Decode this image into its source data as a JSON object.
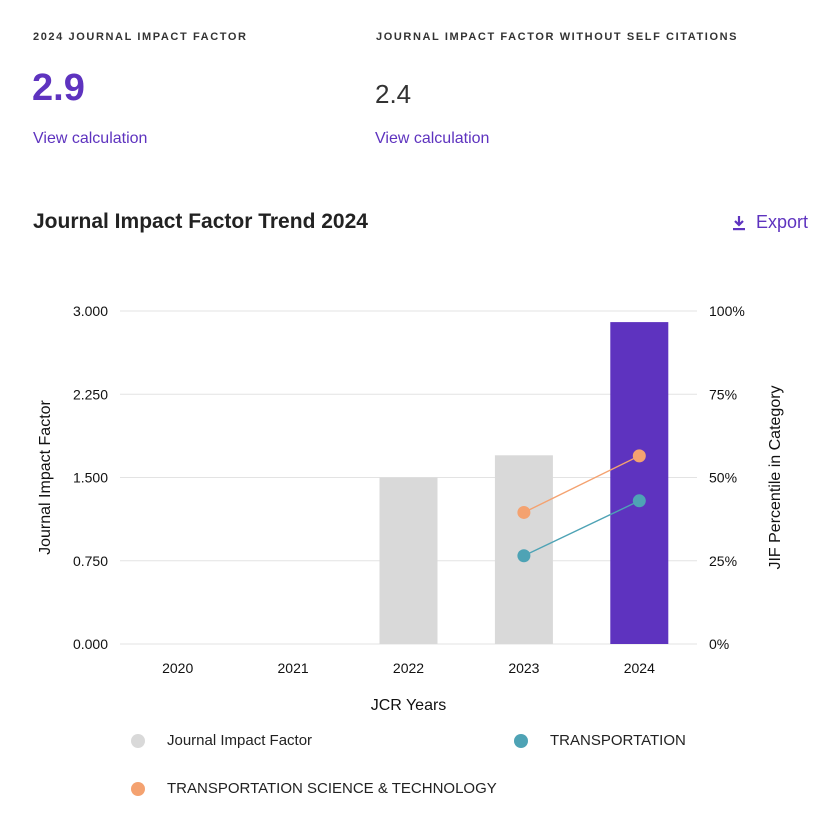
{
  "metrics": {
    "jif": {
      "label": "2024 JOURNAL IMPACT FACTOR",
      "value": "2.9",
      "link": "View calculation"
    },
    "jif_no_self": {
      "label": "JOURNAL IMPACT FACTOR WITHOUT SELF CITATIONS",
      "value": "2.4",
      "link": "View calculation"
    }
  },
  "section": {
    "title": "Journal Impact Factor Trend 2024",
    "export_label": "Export",
    "export_icon": "download-icon"
  },
  "colors": {
    "accent": "#5e33bf",
    "bar_gray": "#d9d9d9",
    "transportation": "#4ea3b5",
    "tst": "#f4a270"
  },
  "chart_data": {
    "type": "bar",
    "title": "",
    "xlabel": "JCR Years",
    "ylabel": "Journal Impact Factor",
    "y2label": "JIF Percentile in Category",
    "categories": [
      "2020",
      "2021",
      "2022",
      "2023",
      "2024"
    ],
    "ylim": [
      0,
      3
    ],
    "y_ticks": [
      "0.000",
      "0.750",
      "1.500",
      "2.250",
      "3.000"
    ],
    "y2lim": [
      0,
      100
    ],
    "y2_ticks": [
      "0%",
      "25%",
      "50%",
      "75%",
      "100%"
    ],
    "grid": true,
    "bars": {
      "name": "Journal Impact Factor",
      "values": [
        null,
        null,
        1.5,
        1.7,
        2.9
      ],
      "highlight_index": 4
    },
    "series": [
      {
        "name": "TRANSPORTATION",
        "axis": "y2",
        "points": [
          {
            "x": "2023",
            "y": 26.5
          },
          {
            "x": "2024",
            "y": 43
          }
        ]
      },
      {
        "name": "TRANSPORTATION SCIENCE & TECHNOLOGY",
        "axis": "y2",
        "points": [
          {
            "x": "2023",
            "y": 39.5
          },
          {
            "x": "2024",
            "y": 56.5
          }
        ]
      }
    ],
    "legend_position": "bottom"
  }
}
